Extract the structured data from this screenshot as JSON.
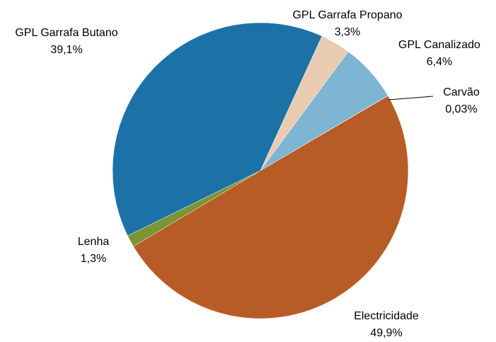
{
  "chart_data": {
    "type": "pie",
    "categories": [
      "GPL Garrafa Propano",
      "GPL Canalizado",
      "Carvão",
      "Electricidade",
      "Lenha",
      "GPL Garrafa Butano"
    ],
    "values": [
      3.3,
      6.4,
      0.03,
      49.9,
      1.3,
      39.1
    ],
    "value_labels": [
      "3,3%",
      "6,4%",
      "0,03%",
      "49,9%",
      "1,3%",
      "39,1%"
    ],
    "colors": [
      "#e9cbb2",
      "#7db5d2",
      "#333333",
      "#b85c27",
      "#7b9434",
      "#1c72a6"
    ]
  }
}
